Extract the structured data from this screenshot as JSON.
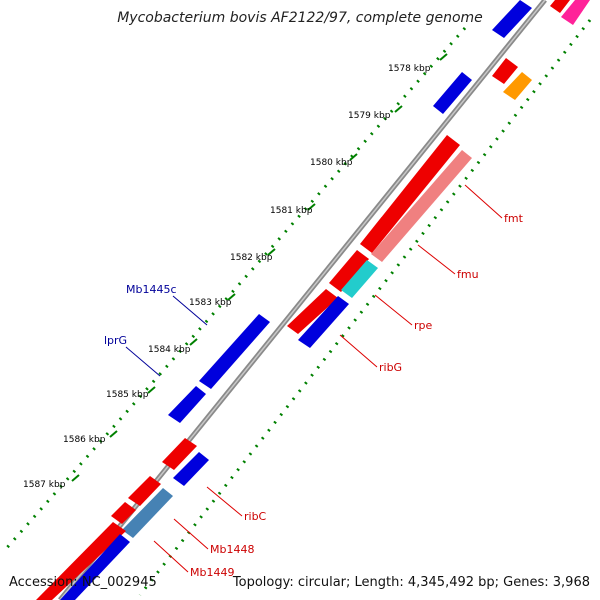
{
  "title": "Mycobacterium bovis AF2122/97, complete genome",
  "accession": "Accession: NC_002945",
  "summary": "Topology: circular; Length: 4,345,492 bp; Genes: 3,968",
  "ticks": [
    "1578 kbp",
    "1579 kbp",
    "1580 kbp",
    "1581 kbp",
    "1582 kbp",
    "1583 kbp",
    "1584 kbp",
    "1585 kbp",
    "1586 kbp",
    "1587 kbp"
  ],
  "gene_labels": {
    "fmt": "fmt",
    "fmu": "fmu",
    "rpe": "rpe",
    "ribG": "ribG",
    "ribC": "ribC",
    "Mb1448": "Mb1448",
    "Mb1449": "Mb1449",
    "Mb1445c": "Mb1445c",
    "lprG": "lprG"
  },
  "colors": {
    "forward_cds": "#ff0000",
    "reverse_cds": "#0000ff",
    "backbone": "#999999",
    "dots": "#008000",
    "label_forward": "#cc0000",
    "label_reverse": "#000099"
  }
}
